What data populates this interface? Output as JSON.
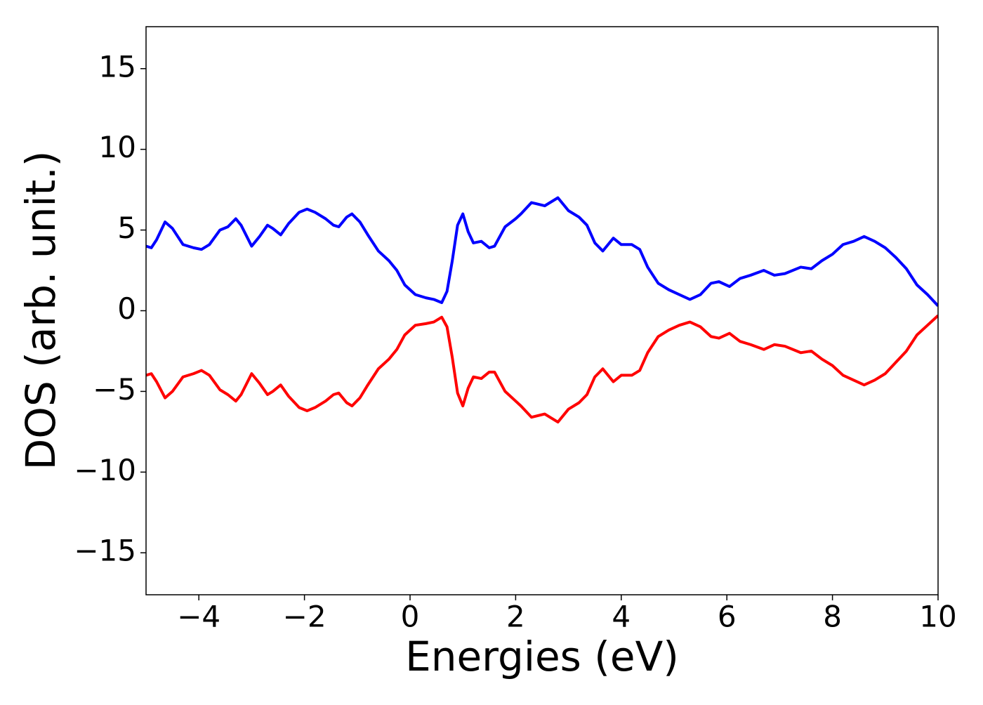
{
  "chart_data": {
    "type": "line",
    "xlabel": "Energies (eV)",
    "ylabel": "DOS (arb. unit.)",
    "xlim": [
      -5,
      10
    ],
    "ylim": [
      -17.6,
      17.6
    ],
    "xticks": [
      {
        "value": -4,
        "label": "−4"
      },
      {
        "value": -2,
        "label": "−2"
      },
      0,
      2,
      4,
      6,
      8,
      10
    ],
    "yticks": [
      {
        "value": -15,
        "label": "−15"
      },
      {
        "value": -10,
        "label": "−10"
      },
      {
        "value": -5,
        "label": "−5"
      },
      0,
      5,
      10,
      15
    ],
    "grid": false,
    "x": [
      -5,
      -4.9,
      -4.8,
      -4.64,
      -4.5,
      -4.3,
      -4.1,
      -3.95,
      -3.8,
      -3.6,
      -3.45,
      -3.3,
      -3.2,
      -3.0,
      -2.85,
      -2.7,
      -2.6,
      -2.45,
      -2.3,
      -2.1,
      -1.95,
      -1.8,
      -1.6,
      -1.45,
      -1.35,
      -1.2,
      -1.1,
      -0.95,
      -0.8,
      -0.6,
      -0.4,
      -0.25,
      -0.1,
      0.1,
      0.3,
      0.45,
      0.6,
      0.7,
      0.8,
      0.9,
      1.0,
      1.1,
      1.2,
      1.35,
      1.5,
      1.6,
      1.8,
      2.0,
      2.1,
      2.3,
      2.55,
      2.8,
      3.0,
      3.2,
      3.35,
      3.5,
      3.65,
      3.85,
      4.0,
      4.2,
      4.35,
      4.5,
      4.7,
      4.9,
      5.1,
      5.3,
      5.5,
      5.7,
      5.85,
      6.05,
      6.25,
      6.45,
      6.7,
      6.9,
      7.1,
      7.4,
      7.6,
      7.8,
      8.0,
      8.2,
      8.4,
      8.6,
      8.8,
      9.0,
      9.2,
      9.4,
      9.6,
      9.8,
      10
    ],
    "series": [
      {
        "color": "#0000ff",
        "values": [
          4.0,
          3.9,
          4.4,
          5.5,
          5.1,
          4.1,
          3.9,
          3.8,
          4.1,
          5.0,
          5.2,
          5.7,
          5.3,
          4.0,
          4.6,
          5.3,
          5.1,
          4.7,
          5.4,
          6.1,
          6.3,
          6.1,
          5.7,
          5.3,
          5.2,
          5.8,
          6.0,
          5.5,
          4.7,
          3.7,
          3.1,
          2.5,
          1.6,
          1.0,
          0.8,
          0.7,
          0.5,
          1.2,
          3.1,
          5.3,
          6.0,
          4.9,
          4.2,
          4.3,
          3.9,
          4.0,
          5.2,
          5.7,
          6.0,
          6.7,
          6.5,
          7.0,
          6.2,
          5.8,
          5.3,
          4.2,
          3.7,
          4.5,
          4.1,
          4.1,
          3.8,
          2.7,
          1.7,
          1.3,
          1.0,
          0.7,
          1.0,
          1.7,
          1.8,
          1.5,
          2.0,
          2.2,
          2.5,
          2.2,
          2.3,
          2.7,
          2.6,
          3.1,
          3.5,
          4.1,
          4.3,
          4.6,
          4.3,
          3.9,
          3.3,
          2.6,
          1.6,
          1.0,
          0.3
        ]
      },
      {
        "color": "#ff0000",
        "values": [
          -4.0,
          -3.9,
          -4.4,
          -5.4,
          -5.0,
          -4.1,
          -3.9,
          -3.7,
          -4.0,
          -4.9,
          -5.2,
          -5.6,
          -5.2,
          -3.9,
          -4.5,
          -5.2,
          -5.0,
          -4.6,
          -5.3,
          -6.0,
          -6.2,
          -6.0,
          -5.6,
          -5.2,
          -5.1,
          -5.7,
          -5.9,
          -5.4,
          -4.6,
          -3.6,
          -3.0,
          -2.4,
          -1.5,
          -0.9,
          -0.8,
          -0.7,
          -0.4,
          -1.0,
          -2.9,
          -5.1,
          -5.9,
          -4.8,
          -4.1,
          -4.2,
          -3.8,
          -3.8,
          -5.0,
          -5.6,
          -5.9,
          -6.6,
          -6.4,
          -6.9,
          -6.1,
          -5.7,
          -5.2,
          -4.1,
          -3.6,
          -4.4,
          -4.0,
          -4.0,
          -3.7,
          -2.6,
          -1.6,
          -1.2,
          -0.9,
          -0.7,
          -1.0,
          -1.6,
          -1.7,
          -1.4,
          -1.9,
          -2.1,
          -2.4,
          -2.1,
          -2.2,
          -2.6,
          -2.5,
          -3.0,
          -3.4,
          -4.0,
          -4.3,
          -4.6,
          -4.3,
          -3.9,
          -3.2,
          -2.5,
          -1.5,
          -0.9,
          -0.3
        ]
      }
    ]
  }
}
